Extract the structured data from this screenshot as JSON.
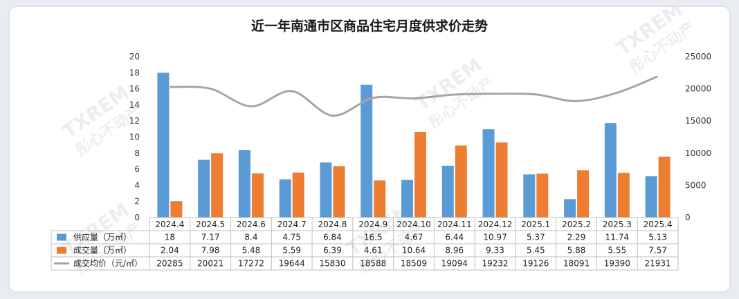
{
  "chart_data": {
    "type": "bar",
    "title": "近一年南通市区商品住宅月度供求价走势",
    "categories": [
      "2024.4",
      "2024.5",
      "2024.6",
      "2024.7",
      "2024.8",
      "2024.9",
      "2024.10",
      "2024.11",
      "2024.12",
      "2025.1",
      "2025.2",
      "2025.3",
      "2025.4"
    ],
    "series": [
      {
        "name": "供应量（万㎡）",
        "kind": "bar",
        "axis": "left",
        "color": "#5b9bd5",
        "values": [
          18,
          7.17,
          8.4,
          4.75,
          6.84,
          16.5,
          4.67,
          6.44,
          10.97,
          5.37,
          2.29,
          11.74,
          5.13
        ]
      },
      {
        "name": "成交量（万㎡）",
        "kind": "bar",
        "axis": "left",
        "color": "#ed7d31",
        "values": [
          2.04,
          7.98,
          5.48,
          5.59,
          6.39,
          4.61,
          10.64,
          8.96,
          9.33,
          5.45,
          5.88,
          5.55,
          7.57
        ]
      },
      {
        "name": "成交均价（元/㎡）",
        "kind": "line",
        "axis": "right",
        "color": "#a5a5a5",
        "values": [
          20285,
          20021,
          17272,
          19644,
          15830,
          18588,
          18509,
          19094,
          19232,
          19126,
          18091,
          19390,
          21931
        ]
      }
    ],
    "ylim_left": [
      0,
      20
    ],
    "yticks_left": [
      "0",
      "2",
      "4",
      "6",
      "8",
      "10",
      "12",
      "14",
      "16",
      "18",
      "20"
    ],
    "ylim_right": [
      0,
      25000
    ],
    "yticks_right": [
      "0",
      "5000",
      "10000",
      "15000",
      "20000",
      "25000"
    ],
    "grid": false,
    "legend": "data-table"
  },
  "watermark": {
    "logo": "TXREM",
    "text": "彤心不动产"
  }
}
